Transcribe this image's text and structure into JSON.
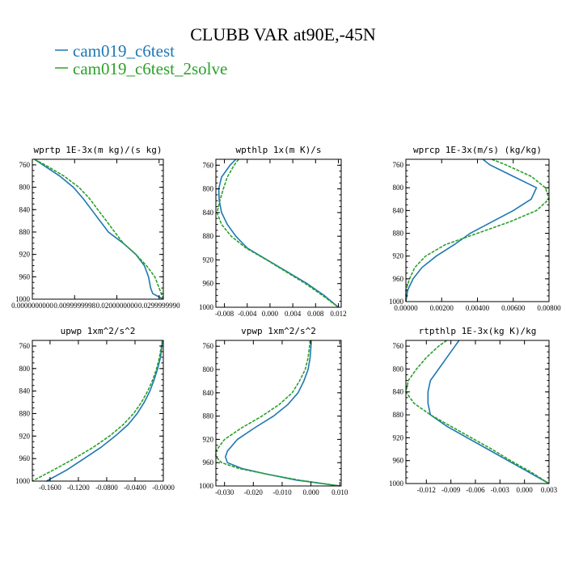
{
  "title": "CLUBB VAR at90E,-45N",
  "legend": [
    {
      "label": "cam019_c6test",
      "color": "#1f77b4"
    },
    {
      "label": "cam019_c6test_2solve",
      "color": "#2ca02c"
    }
  ],
  "chart_data": [
    {
      "type": "line",
      "title": "wprtp   1E-3x(m kg)/(s kg)",
      "xlim": [
        0.0,
        0.031
      ],
      "ylim": [
        1000,
        750
      ],
      "xticks": [
        0.0,
        0.0099999998,
        0.02,
        0.029999999
      ],
      "xtick_labels": [
        "0.0000000000",
        "0.0099999998",
        "0.0200000000",
        "0.0299999990"
      ],
      "yticks": [
        760,
        800,
        840,
        880,
        920,
        960,
        1000
      ],
      "y": [
        750,
        760,
        780,
        800,
        820,
        840,
        860,
        880,
        900,
        920,
        940,
        960,
        980,
        990,
        1000
      ],
      "series": [
        {
          "name": "cam019_c6test",
          "values": [
            0.0005,
            0.0025,
            0.0065,
            0.0097,
            0.012,
            0.014,
            0.016,
            0.018,
            0.0215,
            0.0245,
            0.0265,
            0.0275,
            0.028,
            0.0285,
            0.031
          ]
        },
        {
          "name": "cam019_c6test_2solve",
          "values": [
            0.0005,
            0.003,
            0.0075,
            0.011,
            0.0135,
            0.0155,
            0.0175,
            0.0195,
            0.0215,
            0.0245,
            0.027,
            0.029,
            0.03,
            0.0305,
            0.031
          ]
        }
      ]
    },
    {
      "type": "line",
      "title": "wpthlp   1x(m K)/s",
      "xlim": [
        -0.0095,
        0.0125
      ],
      "ylim": [
        1000,
        750
      ],
      "xticks": [
        -0.008,
        -0.004,
        0.0,
        0.004,
        0.008,
        0.012
      ],
      "xtick_labels": [
        "-0.008",
        "-0.004",
        "0.000",
        "0.004",
        "0.008",
        "0.012"
      ],
      "yticks": [
        760,
        800,
        840,
        880,
        920,
        960,
        1000
      ],
      "y": [
        750,
        760,
        780,
        800,
        820,
        840,
        860,
        880,
        900,
        920,
        940,
        960,
        980,
        1000
      ],
      "series": [
        {
          "name": "cam019_c6test",
          "values": [
            -0.006,
            -0.007,
            -0.0085,
            -0.009,
            -0.0089,
            -0.0085,
            -0.0075,
            -0.006,
            -0.004,
            -0.0005,
            0.003,
            0.0065,
            0.0095,
            0.012
          ]
        },
        {
          "name": "cam019_c6test_2solve",
          "values": [
            -0.0055,
            -0.0063,
            -0.0075,
            -0.0082,
            -0.0088,
            -0.0093,
            -0.0085,
            -0.0068,
            -0.0042,
            -0.0006,
            0.0028,
            0.0062,
            0.0092,
            0.012
          ]
        }
      ]
    },
    {
      "type": "line",
      "title": "wprcp   1E-3x(m/s) (kg/kg)",
      "xlim": [
        0.0,
        0.008
      ],
      "ylim": [
        1000,
        750
      ],
      "xticks": [
        0.0,
        0.002,
        0.004,
        0.006,
        0.008
      ],
      "xtick_labels": [
        "0.00000",
        "0.00200",
        "0.00400",
        "0.00600",
        "0.00800"
      ],
      "yticks": [
        760,
        800,
        840,
        880,
        920,
        960,
        1000
      ],
      "y": [
        750,
        760,
        780,
        800,
        820,
        840,
        860,
        880,
        900,
        920,
        940,
        960,
        980,
        1000
      ],
      "series": [
        {
          "name": "cam019_c6test",
          "values": [
            0.0043,
            0.0047,
            0.006,
            0.0073,
            0.007,
            0.006,
            0.0048,
            0.0036,
            0.0027,
            0.0017,
            0.0009,
            0.0004,
            0.0001,
            0.0
          ]
        },
        {
          "name": "cam019_c6test_2solve",
          "values": [
            0.0048,
            0.0056,
            0.007,
            0.0078,
            0.008,
            0.0073,
            0.0058,
            0.004,
            0.0022,
            0.0011,
            0.0005,
            0.0002,
            0.0,
            0.0
          ]
        }
      ]
    },
    {
      "type": "line",
      "title": "upwp   1xm^2/s^2",
      "xlim": [
        -0.185,
        0.0
      ],
      "ylim": [
        1000,
        750
      ],
      "xticks": [
        -0.16,
        -0.12,
        -0.08,
        -0.04,
        0.0
      ],
      "xtick_labels": [
        "-0.1600",
        "-0.1200",
        "-0.0800",
        "-0.0400",
        "-0.0000"
      ],
      "yticks": [
        760,
        800,
        840,
        880,
        920,
        960,
        1000
      ],
      "y": [
        750,
        780,
        800,
        820,
        840,
        860,
        880,
        900,
        920,
        940,
        960,
        980,
        1000
      ],
      "series": [
        {
          "name": "cam019_c6test",
          "values": [
            -0.001,
            -0.004,
            -0.008,
            -0.013,
            -0.019,
            -0.027,
            -0.037,
            -0.05,
            -0.068,
            -0.088,
            -0.112,
            -0.136,
            -0.165
          ]
        },
        {
          "name": "cam019_c6test_2solve",
          "values": [
            -0.0015,
            -0.0055,
            -0.0095,
            -0.015,
            -0.022,
            -0.031,
            -0.042,
            -0.057,
            -0.076,
            -0.099,
            -0.126,
            -0.155,
            -0.185
          ]
        }
      ]
    },
    {
      "type": "line",
      "title": "vpwp   1xm^2/s^2",
      "xlim": [
        -0.033,
        0.0105
      ],
      "ylim": [
        1000,
        750
      ],
      "xticks": [
        -0.03,
        -0.02,
        -0.01,
        0.0,
        0.01
      ],
      "xtick_labels": [
        "-0.030",
        "-0.020",
        "-0.010",
        "0.000",
        "0.010"
      ],
      "yticks": [
        760,
        800,
        840,
        880,
        920,
        960,
        1000
      ],
      "y": [
        750,
        760,
        780,
        800,
        820,
        840,
        860,
        880,
        900,
        920,
        940,
        950,
        960,
        970,
        980,
        990,
        1000
      ],
      "series": [
        {
          "name": "cam019_c6test",
          "values": [
            0.0,
            0.0,
            -0.0003,
            -0.001,
            -0.0025,
            -0.0045,
            -0.008,
            -0.013,
            -0.0195,
            -0.0255,
            -0.029,
            -0.0297,
            -0.029,
            -0.024,
            -0.015,
            -0.005,
            0.01
          ]
        },
        {
          "name": "cam019_c6test_2solve",
          "values": [
            -0.0003,
            -0.0005,
            -0.001,
            -0.002,
            -0.004,
            -0.0065,
            -0.011,
            -0.017,
            -0.024,
            -0.03,
            -0.033,
            -0.033,
            -0.031,
            -0.025,
            -0.015,
            -0.004,
            0.01
          ]
        }
      ]
    },
    {
      "type": "line",
      "title": "rtpthlp   1E-3x(kg K)/kg",
      "xlim": [
        -0.0145,
        0.003
      ],
      "ylim": [
        1000,
        750
      ],
      "xticks": [
        -0.012,
        -0.009,
        -0.006,
        -0.003,
        0.0,
        0.003
      ],
      "xtick_labels": [
        "-0.012",
        "-0.009",
        "-0.006",
        "-0.003",
        "0.000",
        "0.003"
      ],
      "yticks": [
        760,
        800,
        840,
        880,
        920,
        960,
        1000
      ],
      "y": [
        750,
        760,
        780,
        800,
        820,
        840,
        860,
        880,
        900,
        920,
        940,
        960,
        980,
        1000
      ],
      "series": [
        {
          "name": "cam019_c6test",
          "values": [
            -0.008,
            -0.0085,
            -0.0095,
            -0.0105,
            -0.0115,
            -0.0118,
            -0.0118,
            -0.0115,
            -0.0095,
            -0.007,
            -0.0045,
            -0.002,
            0.0005,
            0.003
          ]
        },
        {
          "name": "cam019_c6test_2solve",
          "values": [
            -0.0095,
            -0.0105,
            -0.012,
            -0.0132,
            -0.0142,
            -0.0145,
            -0.0135,
            -0.0115,
            -0.009,
            -0.0065,
            -0.004,
            -0.0017,
            0.0008,
            0.003
          ]
        }
      ]
    }
  ]
}
